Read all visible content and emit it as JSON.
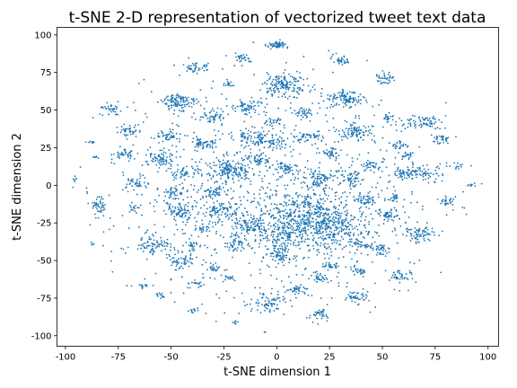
{
  "chart_data": {
    "type": "scatter",
    "title": "t-SNE 2-D representation of vectorized tweet text data",
    "xlabel": "t-SNE dimension 1",
    "ylabel": "t-SNE dimension 2",
    "xlim": [
      -104,
      105
    ],
    "ylim": [
      -107,
      105
    ],
    "xticks": [
      -100,
      -75,
      -50,
      -25,
      0,
      25,
      50,
      75,
      100
    ],
    "yticks": [
      -100,
      -75,
      -50,
      -25,
      0,
      25,
      50,
      75,
      100
    ],
    "grid": false,
    "marker_color": "#1f77b4",
    "series": [
      {
        "clusters": [
          {
            "cx": 0,
            "cy": 93,
            "sx": 2.5,
            "sy": 1.5,
            "n": 60
          },
          {
            "cx": 4,
            "cy": 66,
            "sx": 5,
            "sy": 4,
            "n": 160
          },
          {
            "cx": -16,
            "cy": 84,
            "sx": 2,
            "sy": 1.5,
            "n": 30
          },
          {
            "cx": 30,
            "cy": 83,
            "sx": 2,
            "sy": 1.5,
            "n": 35
          },
          {
            "cx": -39,
            "cy": 78,
            "sx": 3,
            "sy": 1.5,
            "n": 40
          },
          {
            "cx": 51,
            "cy": 72,
            "sx": 2.5,
            "sy": 2,
            "n": 35
          },
          {
            "cx": -23,
            "cy": 67,
            "sx": 1.5,
            "sy": 1,
            "n": 15
          },
          {
            "cx": -46,
            "cy": 55,
            "sx": 4,
            "sy": 3,
            "n": 110
          },
          {
            "cx": 32,
            "cy": 58,
            "sx": 5,
            "sy": 3,
            "n": 110
          },
          {
            "cx": -14,
            "cy": 52,
            "sx": 3,
            "sy": 2,
            "n": 60
          },
          {
            "cx": 12,
            "cy": 48,
            "sx": 2,
            "sy": 1.5,
            "n": 30
          },
          {
            "cx": -80,
            "cy": 51,
            "sx": 3,
            "sy": 3,
            "n": 45
          },
          {
            "cx": -30,
            "cy": 45,
            "sx": 3,
            "sy": 2,
            "n": 45
          },
          {
            "cx": 53,
            "cy": 45,
            "sx": 2,
            "sy": 1.5,
            "n": 20
          },
          {
            "cx": 70,
            "cy": 42,
            "sx": 4,
            "sy": 2.5,
            "n": 70
          },
          {
            "cx": 0,
            "cy": 42,
            "sx": 2,
            "sy": 1.5,
            "n": 25
          },
          {
            "cx": -10,
            "cy": 32,
            "sx": 4,
            "sy": 3,
            "n": 80
          },
          {
            "cx": 38,
            "cy": 36,
            "sx": 4,
            "sy": 3,
            "n": 80
          },
          {
            "cx": 14,
            "cy": 32,
            "sx": 3,
            "sy": 2,
            "n": 40
          },
          {
            "cx": -70,
            "cy": 36,
            "sx": 3,
            "sy": 2,
            "n": 40
          },
          {
            "cx": -52,
            "cy": 33,
            "sx": 3,
            "sy": 2,
            "n": 40
          },
          {
            "cx": -35,
            "cy": 28,
            "sx": 3,
            "sy": 2,
            "n": 50
          },
          {
            "cx": 78,
            "cy": 31,
            "sx": 2,
            "sy": 1.5,
            "n": 35
          },
          {
            "cx": -88,
            "cy": 29,
            "sx": 1,
            "sy": 0.5,
            "n": 8
          },
          {
            "cx": 58,
            "cy": 27,
            "sx": 2,
            "sy": 1.5,
            "n": 25
          },
          {
            "cx": 0,
            "cy": 28,
            "sx": 2.5,
            "sy": 2,
            "n": 35
          },
          {
            "cx": 25,
            "cy": 22,
            "sx": 2.5,
            "sy": 2,
            "n": 35
          },
          {
            "cx": -72,
            "cy": 21,
            "sx": 3,
            "sy": 2,
            "n": 40
          },
          {
            "cx": -55,
            "cy": 17,
            "sx": 3,
            "sy": 3,
            "n": 60
          },
          {
            "cx": -8,
            "cy": 17,
            "sx": 3,
            "sy": 2,
            "n": 40
          },
          {
            "cx": 62,
            "cy": 20,
            "sx": 2,
            "sy": 1.5,
            "n": 20
          },
          {
            "cx": -22,
            "cy": 10,
            "sx": 5,
            "sy": 4,
            "n": 170
          },
          {
            "cx": 5,
            "cy": 12,
            "sx": 3,
            "sy": 2,
            "n": 50
          },
          {
            "cx": 45,
            "cy": 14,
            "sx": 2.5,
            "sy": 2,
            "n": 30
          },
          {
            "cx": 68,
            "cy": 8,
            "sx": 5,
            "sy": 2.5,
            "n": 80
          },
          {
            "cx": 58,
            "cy": 8,
            "sx": 2,
            "sy": 1.5,
            "n": 25
          },
          {
            "cx": 86,
            "cy": 13,
            "sx": 1.5,
            "sy": 1,
            "n": 10
          },
          {
            "cx": -86,
            "cy": 19,
            "sx": 1,
            "sy": 0.5,
            "n": 6
          },
          {
            "cx": -43,
            "cy": 8,
            "sx": 3,
            "sy": 2,
            "n": 40
          },
          {
            "cx": -66,
            "cy": 2,
            "sx": 2.5,
            "sy": 3,
            "n": 40
          },
          {
            "cx": 92,
            "cy": 0,
            "sx": 1.5,
            "sy": 1,
            "n": 10
          },
          {
            "cx": -95,
            "cy": 4,
            "sx": 0.5,
            "sy": 1,
            "n": 6
          },
          {
            "cx": -50,
            "cy": -5,
            "sx": 3,
            "sy": 2,
            "n": 40
          },
          {
            "cx": 20,
            "cy": 4,
            "sx": 3,
            "sy": 3,
            "n": 60
          },
          {
            "cx": 35,
            "cy": 5,
            "sx": 3,
            "sy": 3,
            "n": 50
          },
          {
            "cx": -84,
            "cy": -14,
            "sx": 2,
            "sy": 3,
            "n": 45
          },
          {
            "cx": -30,
            "cy": -5,
            "sx": 3,
            "sy": 2,
            "n": 45
          },
          {
            "cx": 42,
            "cy": -10,
            "sx": 3,
            "sy": 2,
            "n": 45
          },
          {
            "cx": 56,
            "cy": -8,
            "sx": 2,
            "sy": 1.5,
            "n": 20
          },
          {
            "cx": 80,
            "cy": -11,
            "sx": 2,
            "sy": 1.5,
            "n": 25
          },
          {
            "cx": -67,
            "cy": -14,
            "sx": 1.5,
            "sy": 1.5,
            "n": 15
          },
          {
            "cx": -45,
            "cy": -17,
            "sx": 4,
            "sy": 3,
            "n": 80
          },
          {
            "cx": -25,
            "cy": -17,
            "sx": 5,
            "sy": 3,
            "n": 90
          },
          {
            "cx": 10,
            "cy": -18,
            "sx": 10,
            "sy": 7,
            "n": 300
          },
          {
            "cx": 25,
            "cy": -28,
            "sx": 8,
            "sy": 8,
            "n": 300
          },
          {
            "cx": 3,
            "cy": -33,
            "sx": 6,
            "sy": 5,
            "n": 160
          },
          {
            "cx": -12,
            "cy": -27,
            "sx": 4,
            "sy": 3,
            "n": 70
          },
          {
            "cx": 54,
            "cy": -20,
            "sx": 3,
            "sy": 2,
            "n": 45
          },
          {
            "cx": -35,
            "cy": -28,
            "sx": 2,
            "sy": 2,
            "n": 25
          },
          {
            "cx": 68,
            "cy": -31,
            "sx": 4,
            "sy": 3,
            "n": 70
          },
          {
            "cx": -20,
            "cy": -38,
            "sx": 3,
            "sy": 3,
            "n": 50
          },
          {
            "cx": 40,
            "cy": -38,
            "sx": 3,
            "sy": 3,
            "n": 45
          },
          {
            "cx": -58,
            "cy": -40,
            "sx": 4,
            "sy": 3,
            "n": 70
          },
          {
            "cx": -40,
            "cy": -40,
            "sx": 2,
            "sy": 2,
            "n": 25
          },
          {
            "cx": 2,
            "cy": -47,
            "sx": 3,
            "sy": 3,
            "n": 60
          },
          {
            "cx": -87,
            "cy": -39,
            "sx": 0.5,
            "sy": 0.5,
            "n": 5
          },
          {
            "cx": 50,
            "cy": -43,
            "sx": 2.5,
            "sy": 2,
            "n": 35
          },
          {
            "cx": -45,
            "cy": -50,
            "sx": 3,
            "sy": 3,
            "n": 50
          },
          {
            "cx": -28,
            "cy": -55,
            "sx": 2,
            "sy": 1.5,
            "n": 20
          },
          {
            "cx": 25,
            "cy": -53,
            "sx": 2,
            "sy": 1.5,
            "n": 25
          },
          {
            "cx": 20,
            "cy": -61,
            "sx": 2,
            "sy": 1.5,
            "n": 30
          },
          {
            "cx": 58,
            "cy": -60,
            "sx": 2.5,
            "sy": 2,
            "n": 35
          },
          {
            "cx": -22,
            "cy": -62,
            "sx": 1.5,
            "sy": 1,
            "n": 15
          },
          {
            "cx": 39,
            "cy": -57,
            "sx": 2,
            "sy": 1.5,
            "n": 25
          },
          {
            "cx": -37,
            "cy": -65,
            "sx": 1.5,
            "sy": 1,
            "n": 15
          },
          {
            "cx": -64,
            "cy": -67,
            "sx": 1.5,
            "sy": 1,
            "n": 12
          },
          {
            "cx": 10,
            "cy": -70,
            "sx": 3,
            "sy": 2,
            "n": 40
          },
          {
            "cx": -3,
            "cy": -78,
            "sx": 4,
            "sy": 3,
            "n": 70
          },
          {
            "cx": 38,
            "cy": -74,
            "sx": 3,
            "sy": 2,
            "n": 40
          },
          {
            "cx": -55,
            "cy": -74,
            "sx": 1.5,
            "sy": 1,
            "n": 12
          },
          {
            "cx": -39,
            "cy": -83,
            "sx": 1,
            "sy": 1,
            "n": 10
          },
          {
            "cx": 20,
            "cy": -85,
            "sx": 2.5,
            "sy": 2,
            "n": 35
          },
          {
            "cx": -20,
            "cy": -91,
            "sx": 1,
            "sy": 0.5,
            "n": 6
          },
          {
            "cx": -5,
            "cy": -98,
            "sx": 0.5,
            "sy": 0.5,
            "n": 4
          }
        ],
        "background": {
          "cx": -3,
          "cy": -6,
          "sx": 42,
          "sy": 40,
          "n": 1000
        }
      }
    ]
  }
}
